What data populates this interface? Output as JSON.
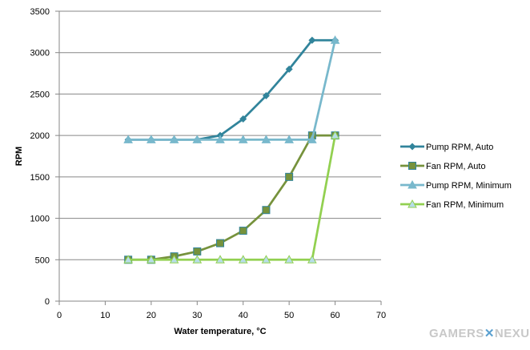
{
  "chart_data": {
    "type": "line",
    "title": "",
    "xlabel": "Water temperature, °C",
    "ylabel": "RPM",
    "xlim": [
      0,
      70
    ],
    "ylim": [
      0,
      3500
    ],
    "xticks": [
      0,
      10,
      20,
      30,
      40,
      50,
      60,
      70
    ],
    "yticks": [
      0,
      500,
      1000,
      1500,
      2000,
      2500,
      3000,
      3500
    ],
    "grid": "horizontal",
    "legend_position": "right",
    "x": [
      15,
      20,
      25,
      30,
      35,
      40,
      45,
      50,
      55,
      60
    ],
    "series": [
      {
        "name": "Pump RPM, Auto",
        "marker": "diamond",
        "color": "#31849b",
        "values": [
          1950,
          1950,
          1950,
          1950,
          2000,
          2200,
          2480,
          2800,
          3150,
          3150
        ]
      },
      {
        "name": "Fan RPM, Auto",
        "marker": "square",
        "color": "#76923c",
        "values": [
          500,
          500,
          540,
          600,
          700,
          850,
          1100,
          1500,
          2000,
          2000
        ]
      },
      {
        "name": "Pump RPM, Minimum",
        "marker": "triangle",
        "color": "#78b8cc",
        "values": [
          1950,
          1950,
          1950,
          1950,
          1950,
          1950,
          1950,
          1950,
          1950,
          3150
        ]
      },
      {
        "name": "Fan RPM, Minimum",
        "marker": "triangle",
        "color": "#92d050",
        "values": [
          500,
          500,
          500,
          500,
          500,
          500,
          500,
          500,
          500,
          2000
        ]
      }
    ]
  },
  "watermark": "GAMERSNEXUS"
}
